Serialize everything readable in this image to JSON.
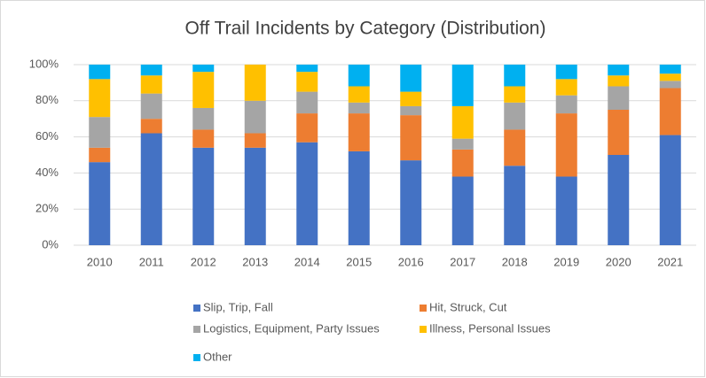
{
  "chart_data": {
    "type": "stacked_bar_percent",
    "title": "Off Trail Incidents by Category (Distribution)",
    "categories": [
      "2010",
      "2011",
      "2012",
      "2013",
      "2014",
      "2015",
      "2016",
      "2017",
      "2018",
      "2019",
      "2020",
      "2021"
    ],
    "series": [
      {
        "name": "Slip, Trip, Fall",
        "color": "#4472c4",
        "values": [
          46,
          62,
          54,
          54,
          57,
          52,
          47,
          38,
          44,
          38,
          50,
          61
        ]
      },
      {
        "name": "Hit, Struck, Cut",
        "color": "#ed7d31",
        "values": [
          8,
          8,
          10,
          8,
          16,
          21,
          25,
          15,
          20,
          35,
          25,
          26
        ]
      },
      {
        "name": "Logistics, Equipment, Party Issues",
        "color": "#a5a5a5",
        "values": [
          17,
          14,
          12,
          18,
          12,
          6,
          5,
          6,
          15,
          10,
          13,
          4
        ]
      },
      {
        "name": "Illness, Personal Issues",
        "color": "#ffc000",
        "values": [
          21,
          10,
          20,
          20,
          11,
          9,
          8,
          18,
          9,
          9,
          6,
          4
        ]
      },
      {
        "name": "Other",
        "color": "#00b0f0",
        "values": [
          8,
          6,
          4,
          0,
          4,
          12,
          15,
          23,
          12,
          8,
          6,
          5
        ]
      }
    ],
    "ylim": [
      0,
      100
    ],
    "yticks": [
      {
        "value": 0,
        "label": "0%"
      },
      {
        "value": 20,
        "label": "20%"
      },
      {
        "value": 40,
        "label": "40%"
      },
      {
        "value": 60,
        "label": "60%"
      },
      {
        "value": 80,
        "label": "80%"
      },
      {
        "value": 100,
        "label": "100%"
      }
    ],
    "grid": true,
    "legend": "bottom"
  }
}
